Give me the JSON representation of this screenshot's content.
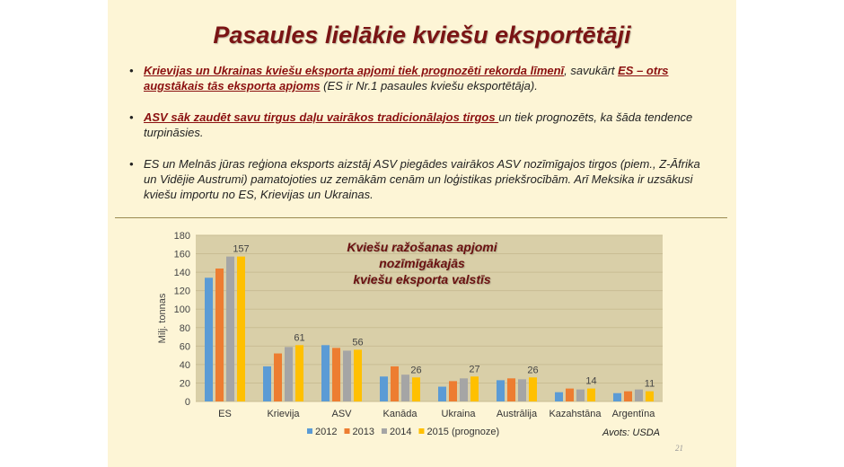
{
  "title": "Pasaules lielākie kviešu eksportētāji",
  "bullets": [
    {
      "highlight1": "Krievijas un Ukrainas kviešu eksporta apjomi tiek prognozēti rekorda līmenī",
      "text1": ", savukārt ",
      "highlight2": "ES – otrs augstākais tās eksporta apjoms",
      "text2": " (ES ir Nr.1 pasaules kviešu eksportētāja)."
    },
    {
      "highlight1": "ASV sāk zaudēt savu tirgus daļu vairākos tradicionālajos tirgos ",
      "text1": "un tiek prognozēts, ka šāda tendence turpināsies."
    },
    {
      "text1": "ES  un Melnās jūras reģiona eksports aizstāj ASV piegādes vairākos ASV nozīmīgajos tirgos (piem., Z-Āfrika un Vidējie Austrumi) pamatojoties uz zemākām cenām un loģistikas priekšrocībām. Arī Meksika ir uzsākusi kviešu importu no ES, Krievijas un Ukrainas."
    }
  ],
  "bullet_char": "•",
  "source": "Avots: USDA",
  "page_number": "21",
  "chart_data": {
    "type": "bar",
    "title_line1": "Kviešu ražošanas apjomi nozīmīgākajās",
    "title_line2": "kviešu eksporta valstīs",
    "ylabel": "Milj. tonnas",
    "xlabel": "",
    "ylim": [
      0,
      180
    ],
    "yticks": [
      "0",
      "20",
      "40",
      "60",
      "80",
      "100",
      "120",
      "140",
      "160",
      "180"
    ],
    "grid": true,
    "legend_position": "bottom",
    "categories": [
      "ES",
      "Krievija",
      "ASV",
      "Kanāda",
      "Ukraina",
      "Austrālija",
      "Kazahstāna",
      "Argentīna"
    ],
    "series": [
      {
        "name": "2012",
        "color": "#5b9bd5",
        "values": [
          134,
          38,
          61,
          27,
          16,
          23,
          10,
          9
        ]
      },
      {
        "name": "2013",
        "color": "#ed7d31",
        "values": [
          144,
          52,
          58,
          38,
          22,
          25,
          14,
          11
        ]
      },
      {
        "name": "2014",
        "color": "#a5a5a5",
        "values": [
          157,
          59,
          55,
          29,
          25,
          24,
          13,
          13
        ]
      },
      {
        "name": "2015 (prognoze)",
        "color": "#ffc000",
        "values": [
          157,
          61,
          56,
          26,
          27,
          26,
          14,
          11
        ]
      }
    ],
    "data_labels": [
      "157",
      "61",
      "56",
      "26",
      "27",
      "26",
      "14",
      "11"
    ],
    "plot_background": "#d9cfa8"
  }
}
